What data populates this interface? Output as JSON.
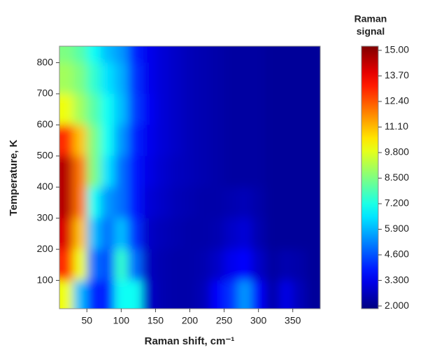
{
  "chart_data": {
    "type": "heatmap",
    "x_label": "Raman shift, cm⁻¹",
    "y_label": "Temperature, K",
    "colorbar_title": [
      "Raman",
      "signal"
    ],
    "colormap": "jet",
    "xlim": [
      10,
      390
    ],
    "ylim": [
      9,
      853
    ],
    "clim": [
      1.86,
      15.21
    ],
    "xticks": [
      50,
      100,
      150,
      200,
      250,
      300,
      350
    ],
    "yticks": [
      100,
      200,
      300,
      400,
      500,
      600,
      700,
      800
    ],
    "cticks": [
      {
        "value": 15,
        "label": "15.00"
      },
      {
        "value": 13.7,
        "label": "13.70"
      },
      {
        "value": 12.4,
        "label": "12.40"
      },
      {
        "value": 11.1,
        "label": "11.10"
      },
      {
        "value": 9.8,
        "label": "9.800"
      },
      {
        "value": 8.5,
        "label": "8.500"
      },
      {
        "value": 7.2,
        "label": "7.200"
      },
      {
        "value": 5.9,
        "label": "5.900"
      },
      {
        "value": 4.6,
        "label": "4.600"
      },
      {
        "value": 3.3,
        "label": "3.300"
      },
      {
        "value": 2,
        "label": "2.000"
      }
    ],
    "x": [
      20,
      40,
      60,
      80,
      100,
      120,
      140,
      160,
      180,
      200,
      220,
      240,
      260,
      280,
      300,
      320,
      340,
      360,
      380
    ],
    "y": [
      850,
      750,
      650,
      550,
      450,
      350,
      250,
      150,
      50
    ],
    "z": [
      [
        8.5,
        8,
        7,
        6,
        5.5,
        4,
        3.3,
        3,
        2.8,
        2.6,
        2.5,
        2.4,
        2.3,
        2.3,
        2.3,
        2.2,
        2.2,
        2.2,
        2.2
      ],
      [
        9,
        8.5,
        7.5,
        6.5,
        5.8,
        4.2,
        3.3,
        3,
        2.8,
        2.6,
        2.5,
        2.4,
        2.3,
        2.3,
        2.3,
        2.2,
        2.2,
        2.2,
        2.2
      ],
      [
        10,
        9,
        8,
        7,
        6,
        4.3,
        3.4,
        3,
        2.8,
        2.6,
        2.5,
        2.4,
        2.3,
        2.3,
        2.3,
        2.2,
        2.2,
        2.2,
        2.2
      ],
      [
        13,
        11,
        8.5,
        7,
        5.5,
        4,
        3.3,
        3,
        2.8,
        2.6,
        2.5,
        2.4,
        2.3,
        2.3,
        2.3,
        2.2,
        2.2,
        2.2,
        2.2
      ],
      [
        14.5,
        12,
        8.5,
        6.5,
        5,
        3.8,
        3.2,
        2.9,
        2.7,
        2.6,
        2.5,
        2.4,
        2.3,
        2.3,
        2.3,
        2.2,
        2.2,
        2.2,
        2.2
      ],
      [
        14.5,
        12,
        7,
        5.5,
        5,
        3.8,
        3,
        2.8,
        2.6,
        2.5,
        2.4,
        2.4,
        2.5,
        2.6,
        2.4,
        2.2,
        2.2,
        2.2,
        2.2
      ],
      [
        14,
        11,
        6,
        5,
        6,
        4.2,
        2.8,
        2.6,
        2.5,
        2.4,
        2.4,
        2.5,
        2.8,
        3,
        2.5,
        2.2,
        2.2,
        2.2,
        2.2
      ],
      [
        13,
        10,
        5,
        4.5,
        7.5,
        5,
        2.7,
        2.5,
        2.4,
        2.4,
        2.5,
        2.8,
        3.3,
        3.6,
        2.8,
        2.3,
        2.5,
        2.4,
        2.2
      ],
      [
        10,
        6,
        4,
        4,
        7,
        7,
        2.8,
        2.5,
        2.4,
        2.4,
        2.6,
        3.5,
        4.2,
        5.5,
        3.5,
        2.4,
        3.2,
        2.6,
        2.2
      ]
    ]
  }
}
